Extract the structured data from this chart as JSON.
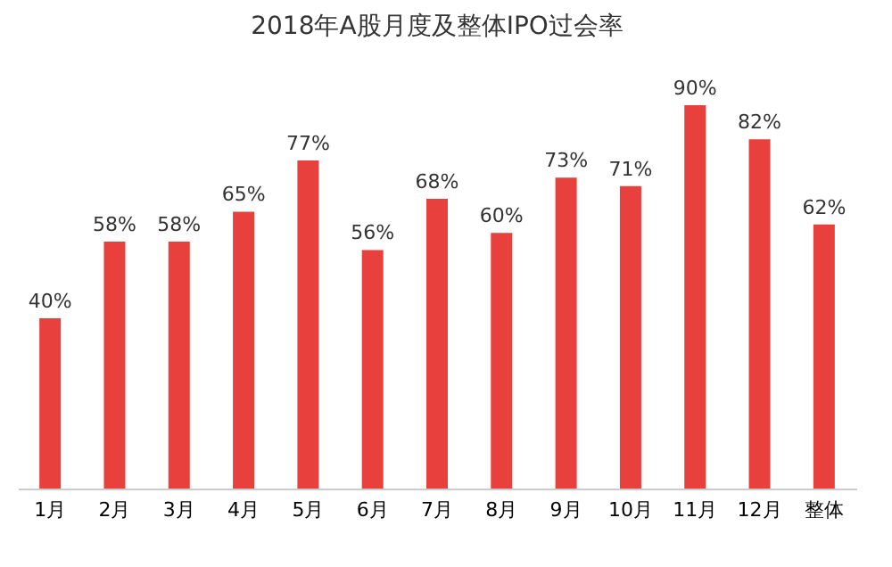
{
  "chart_data": {
    "type": "bar",
    "title": "2018年A股月度及整体IPO过会率",
    "categories": [
      "1月",
      "2月",
      "3月",
      "4月",
      "5月",
      "6月",
      "7月",
      "8月",
      "9月",
      "10月",
      "11月",
      "12月",
      "整体"
    ],
    "values": [
      40,
      58,
      58,
      65,
      77,
      56,
      68,
      60,
      73,
      71,
      90,
      82,
      62
    ],
    "value_labels": [
      "40%",
      "58%",
      "58%",
      "65%",
      "77%",
      "56%",
      "68%",
      "60%",
      "73%",
      "71%",
      "90%",
      "82%",
      "62%"
    ],
    "color": "#e8403d",
    "grid": false
  }
}
